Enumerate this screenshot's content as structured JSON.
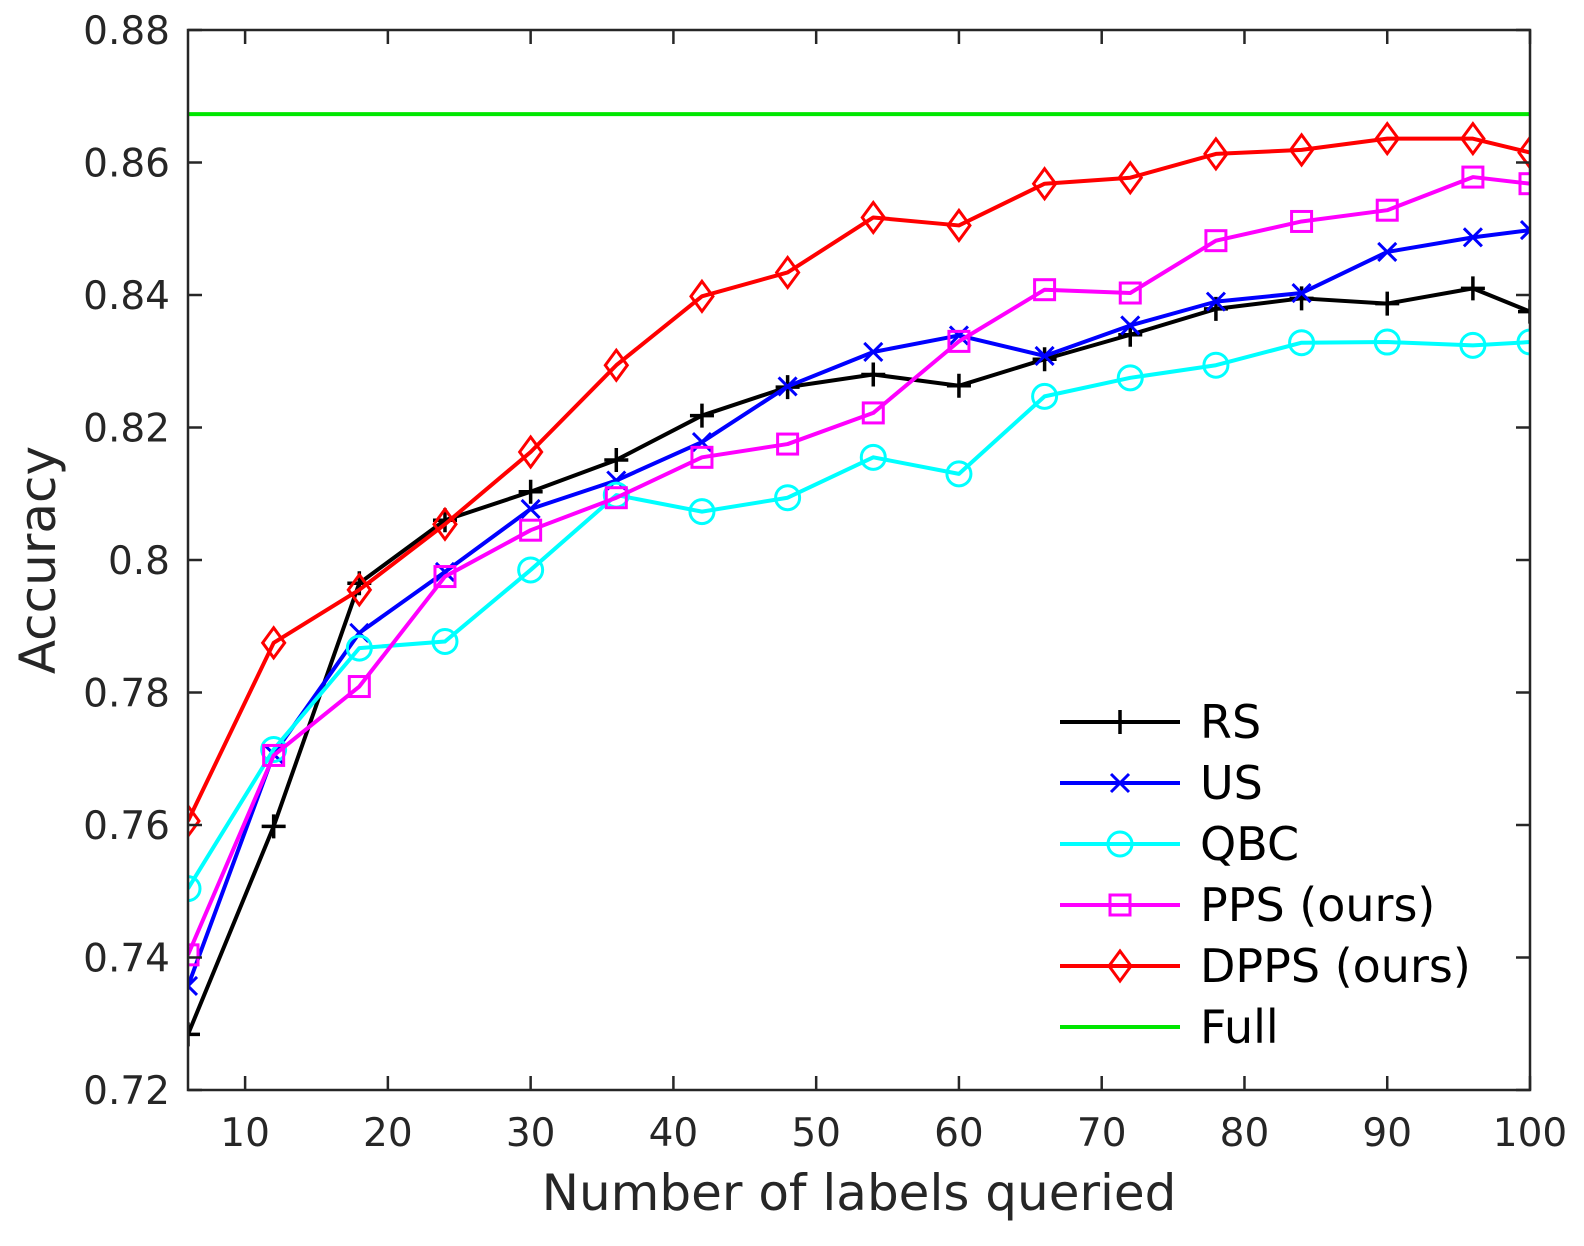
{
  "chart_data": {
    "type": "line",
    "title": "",
    "xlabel": "Number of labels queried",
    "ylabel": "Accuracy",
    "xlim": [
      6,
      100
    ],
    "ylim": [
      0.72,
      0.88
    ],
    "grid": false,
    "legend_position": "bottom-right",
    "xticks": [
      10,
      20,
      30,
      40,
      50,
      60,
      70,
      80,
      90,
      100
    ],
    "xtick_labels": [
      "10",
      "20",
      "30",
      "40",
      "50",
      "60",
      "70",
      "80",
      "90",
      "100"
    ],
    "yticks": [
      0.72,
      0.74,
      0.76,
      0.78,
      0.8,
      0.82,
      0.84,
      0.86,
      0.88
    ],
    "ytick_labels": [
      "0.72",
      "0.74",
      "0.76",
      "0.78",
      "0.8",
      "0.82",
      "0.84",
      "0.86",
      "0.88"
    ],
    "x": [
      6,
      12,
      18,
      24,
      30,
      36,
      42,
      48,
      54,
      60,
      66,
      72,
      78,
      84,
      90,
      96,
      100
    ],
    "series": [
      {
        "name": "RS",
        "color": "#000000",
        "marker": "plus",
        "values": [
          0.7284,
          0.7598,
          0.7965,
          0.806,
          0.8103,
          0.8151,
          0.8218,
          0.8261,
          0.828,
          0.8263,
          0.8303,
          0.834,
          0.8379,
          0.8395,
          0.8387,
          0.841,
          0.8375
        ]
      },
      {
        "name": "US",
        "color": "#0000ff",
        "marker": "x",
        "values": [
          0.7357,
          0.7707,
          0.789,
          0.7982,
          0.8077,
          0.812,
          0.8178,
          0.8262,
          0.8314,
          0.8339,
          0.8308,
          0.8354,
          0.839,
          0.8403,
          0.8465,
          0.8487,
          0.8498
        ]
      },
      {
        "name": "QBC",
        "color": "#00ffff",
        "marker": "circle",
        "values": [
          0.7504,
          0.7714,
          0.7867,
          0.7877,
          0.7985,
          0.8098,
          0.8073,
          0.8094,
          0.8155,
          0.813,
          0.8247,
          0.8275,
          0.8294,
          0.8328,
          0.8329,
          0.8324,
          0.8329
        ]
      },
      {
        "name": "PPS (ours)",
        "color": "#ff00ff",
        "marker": "square",
        "values": [
          0.7404,
          0.7705,
          0.7809,
          0.7975,
          0.8045,
          0.8094,
          0.8155,
          0.8175,
          0.8222,
          0.833,
          0.8408,
          0.8403,
          0.8482,
          0.8511,
          0.8528,
          0.8578,
          0.8568
        ]
      },
      {
        "name": "DPPS (ours)",
        "color": "#ff0000",
        "marker": "diamond",
        "values": [
          0.7606,
          0.7875,
          0.7955,
          0.8054,
          0.8163,
          0.8294,
          0.8398,
          0.8434,
          0.8517,
          0.8505,
          0.8568,
          0.8577,
          0.8613,
          0.8619,
          0.8636,
          0.8636,
          0.8615
        ]
      },
      {
        "name": "Full",
        "color": "#00e600",
        "marker": "none",
        "values": [
          0.8673,
          0.8673,
          0.8673,
          0.8673,
          0.8673,
          0.8673,
          0.8673,
          0.8673,
          0.8673,
          0.8673,
          0.8673,
          0.8673,
          0.8673,
          0.8673,
          0.8673,
          0.8673,
          0.8673
        ]
      }
    ]
  }
}
